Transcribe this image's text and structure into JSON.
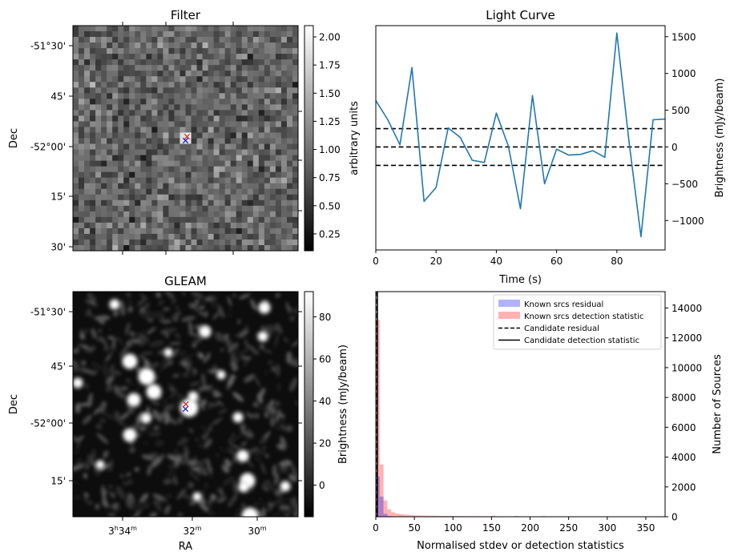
{
  "chart_data": [
    {
      "type": "heatmap",
      "title": "Filter",
      "ylabel": "Dec",
      "y_ticks": [
        "-51°30'",
        "45'",
        "-52°00'",
        "15'",
        "30'"
      ],
      "colorbar": {
        "label": "arbitrary units",
        "ticks": [
          "0.25",
          "0.50",
          "0.75",
          "1.00",
          "1.25",
          "1.50",
          "1.75",
          "2.00"
        ],
        "range": [
          0.1,
          2.1
        ],
        "colormap": "gray"
      },
      "markers": [
        {
          "symbol": "x",
          "color": "#d62728",
          "name": "red-cross"
        },
        {
          "symbol": "x",
          "color": "#1f1fcc",
          "name": "blue-cross"
        }
      ]
    },
    {
      "type": "line",
      "title": "Light Curve",
      "xlabel": "Time (s)",
      "ylabel": "Brightness (mJy/beam)",
      "xlim": [
        0,
        96
      ],
      "ylim": [
        -1400,
        1650
      ],
      "x_ticks": [
        0,
        20,
        40,
        60,
        80
      ],
      "y_ticks": [
        -1000,
        -500,
        0,
        500,
        1000,
        1500
      ],
      "line_color": "#1f77b4",
      "series": [
        {
          "x": [
            0,
            4,
            8,
            12,
            16,
            20,
            24,
            28,
            32,
            36,
            40,
            44,
            48,
            52,
            56,
            60,
            64,
            68,
            72,
            76,
            80,
            84,
            88,
            92,
            96
          ],
          "y": [
            630,
            370,
            30,
            1080,
            -740,
            -550,
            260,
            130,
            -180,
            -210,
            460,
            10,
            -840,
            700,
            -500,
            -30,
            -110,
            -100,
            -50,
            -140,
            1550,
            80,
            -1220,
            370,
            380
          ]
        }
      ],
      "hlines": [
        {
          "y": 250,
          "style": "dashed"
        },
        {
          "y": 0,
          "style": "dashed"
        },
        {
          "y": -250,
          "style": "dashed"
        }
      ]
    },
    {
      "type": "heatmap",
      "title": "GLEAM",
      "xlabel": "RA",
      "ylabel": "Dec",
      "x_ticks": [
        "3h34m",
        "32m",
        "30m"
      ],
      "x_tick_parts": [
        {
          "h": "3",
          "hs": "h",
          "m": "34",
          "ms": "m"
        },
        {
          "m": "32",
          "ms": "m"
        },
        {
          "m": "30",
          "ms": "m"
        }
      ],
      "y_ticks": [
        "-51°30'",
        "45'",
        "-52°00'",
        "15'"
      ],
      "colorbar": {
        "label": "Brightness (mJy/beam)",
        "ticks": [
          "0",
          "20",
          "40",
          "60",
          "80"
        ],
        "range": [
          -15,
          92
        ],
        "colormap": "gray"
      },
      "markers": [
        {
          "symbol": "x",
          "color": "#d62728",
          "name": "red-cross"
        },
        {
          "symbol": "x",
          "color": "#1f1fcc",
          "name": "blue-cross"
        }
      ]
    },
    {
      "type": "bar",
      "subtype": "histogram",
      "xlabel": "Normalised stdev or detection statistics",
      "ylabel": "Number of Sources",
      "xlim": [
        0,
        375
      ],
      "ylim": [
        0,
        15100
      ],
      "x_ticks": [
        0,
        50,
        100,
        150,
        200,
        250,
        300,
        350
      ],
      "y_ticks": [
        0,
        2000,
        4000,
        6000,
        8000,
        10000,
        12000,
        14000
      ],
      "bin_width": 5,
      "series": [
        {
          "name": "Known srcs residual",
          "color": "#0000ff",
          "alpha": 0.3,
          "bin_starts": [
            0,
            5,
            10,
            15,
            20
          ],
          "values": [
            2700,
            1350,
            200,
            50,
            15
          ]
        },
        {
          "name": "Known srcs detection statistic",
          "color": "#ff0000",
          "alpha": 0.3,
          "bin_starts": [
            0,
            5,
            10,
            15,
            20,
            25,
            30,
            35,
            40,
            45,
            50,
            55,
            60,
            65,
            70,
            75,
            80,
            85,
            90,
            95,
            100,
            105,
            110,
            115,
            120,
            125,
            130,
            135,
            140,
            145,
            150,
            155,
            160,
            165,
            170,
            175,
            180,
            185,
            190,
            195,
            200,
            205,
            210,
            215,
            220,
            225,
            230,
            235,
            240,
            245,
            250,
            255,
            260,
            265,
            270,
            275,
            280,
            285,
            290,
            295,
            300,
            305,
            310,
            315,
            320,
            325,
            330,
            335,
            340,
            345,
            350
          ],
          "values": [
            13200,
            3500,
            1100,
            500,
            300,
            220,
            170,
            140,
            120,
            100,
            90,
            80,
            75,
            70,
            65,
            60,
            55,
            55,
            50,
            50,
            45,
            40,
            40,
            40,
            35,
            35,
            35,
            30,
            30,
            30,
            60,
            30,
            25,
            25,
            25,
            25,
            50,
            20,
            20,
            20,
            20,
            20,
            20,
            45,
            20,
            15,
            15,
            15,
            15,
            15,
            15,
            15,
            15,
            15,
            15,
            15,
            15,
            15,
            15,
            15,
            15,
            15,
            15,
            15,
            15,
            15,
            15,
            15,
            15,
            15,
            15
          ]
        },
        {
          "name": "Candidate residual",
          "color": "#000000",
          "style": "dashed",
          "x": 1.5
        },
        {
          "name": "Candidate detection statistic",
          "color": "#000000",
          "style": "solid",
          "x": 2
        }
      ],
      "legend": "top-right"
    }
  ]
}
